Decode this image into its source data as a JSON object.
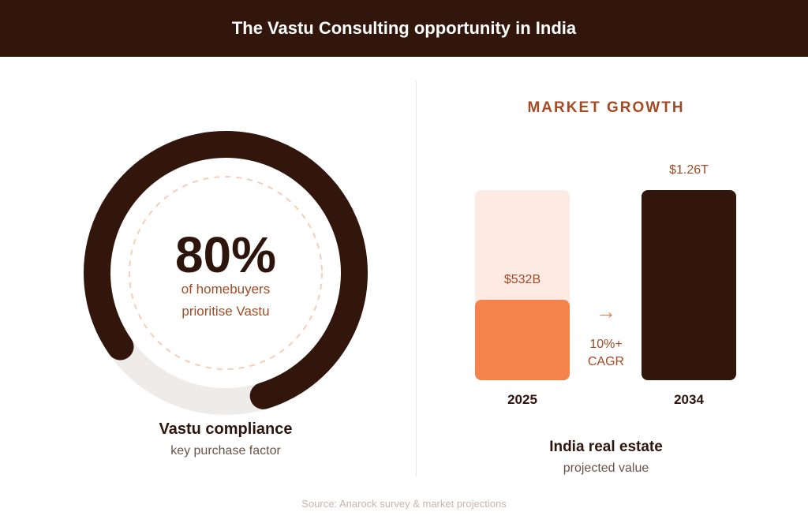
{
  "header": {
    "title": "The Vastu Consulting opportunity in India"
  },
  "colors": {
    "header_bg": "#32160b",
    "dark_brown": "#32160b",
    "orange": "#f4844c",
    "light_peach": "#fdebe3",
    "ring_track": "#efebe8",
    "accent_text": "#a24b25"
  },
  "left_panel": {
    "percent_label": "80%",
    "line1": "of homebuyers",
    "line2": "prioritise Vastu",
    "caption": "Vastu compliance",
    "subcaption": "key purchase factor"
  },
  "right_panel": {
    "title": "MARKET GROWTH",
    "arrow_icon": "right-arrow-icon",
    "cagr_line1": "10%+",
    "cagr_line2": "CAGR",
    "caption": "India real estate",
    "subcaption": "projected value"
  },
  "footer": {
    "source": "Source: Anarock survey & market projections"
  },
  "chart_data": [
    {
      "type": "pie",
      "title": "",
      "values": [
        80,
        20
      ],
      "labels": [
        "of homebuyers prioritise Vastu",
        ""
      ],
      "percent_label": "80%"
    },
    {
      "type": "bar",
      "title": "MARKET GROWTH",
      "categories": [
        "2025",
        "2034"
      ],
      "values": [
        532,
        1260
      ],
      "value_labels": [
        "$532B",
        "$1.26T"
      ],
      "unit": "USD billions",
      "annotation": "10%+ CAGR"
    }
  ]
}
